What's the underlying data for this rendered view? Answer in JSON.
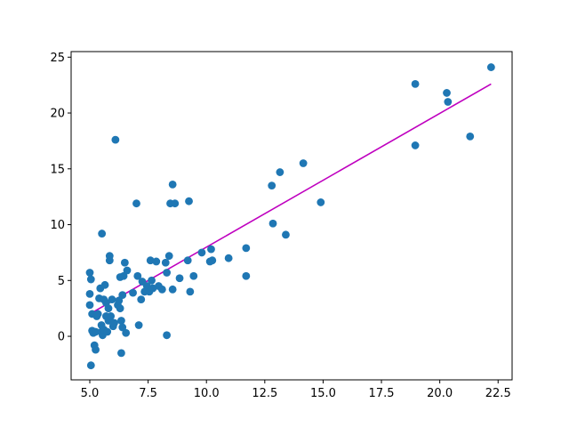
{
  "chart_data": {
    "type": "scatter",
    "title": "",
    "xlabel": "",
    "ylabel": "",
    "xlim": [
      4.2,
      23.1
    ],
    "ylim": [
      -3.9,
      25.5
    ],
    "xticks": [
      5.0,
      7.5,
      10.0,
      12.5,
      15.0,
      17.5,
      20.0,
      22.5
    ],
    "xtick_labels": [
      "5.0",
      "7.5",
      "10.0",
      "12.5",
      "15.0",
      "17.5",
      "20.0",
      "22.5"
    ],
    "yticks": [
      0,
      5,
      10,
      15,
      20,
      25
    ],
    "ytick_labels": [
      "0",
      "5",
      "10",
      "15",
      "20",
      "25"
    ],
    "grid": false,
    "legend": "none",
    "series": [
      {
        "type": "scatter",
        "color": "#1f77b4",
        "points": [
          [
            5.0,
            5.7
          ],
          [
            5.0,
            3.8
          ],
          [
            5.0,
            2.8
          ],
          [
            5.05,
            5.1
          ],
          [
            5.05,
            -2.6
          ],
          [
            5.1,
            2.0
          ],
          [
            5.1,
            0.5
          ],
          [
            5.15,
            0.3
          ],
          [
            5.2,
            -0.8
          ],
          [
            5.25,
            -1.2
          ],
          [
            5.25,
            0.4
          ],
          [
            5.3,
            1.8
          ],
          [
            5.35,
            2.0
          ],
          [
            5.4,
            3.4
          ],
          [
            5.45,
            4.3
          ],
          [
            5.5,
            0.4
          ],
          [
            5.5,
            1.0
          ],
          [
            5.52,
            9.2
          ],
          [
            5.55,
            0.1
          ],
          [
            5.6,
            0.6
          ],
          [
            5.6,
            3.3
          ],
          [
            5.65,
            4.6
          ],
          [
            5.7,
            1.8
          ],
          [
            5.7,
            3.0
          ],
          [
            5.75,
            0.4
          ],
          [
            5.8,
            1.4
          ],
          [
            5.8,
            2.5
          ],
          [
            5.85,
            6.8
          ],
          [
            5.85,
            7.2
          ],
          [
            5.9,
            1.8
          ],
          [
            5.95,
            3.3
          ],
          [
            6.0,
            0.9
          ],
          [
            6.05,
            1.2
          ],
          [
            6.1,
            17.6
          ],
          [
            6.2,
            2.8
          ],
          [
            6.25,
            3.2
          ],
          [
            6.3,
            2.5
          ],
          [
            6.3,
            5.3
          ],
          [
            6.35,
            1.4
          ],
          [
            6.35,
            -1.5
          ],
          [
            6.4,
            0.8
          ],
          [
            6.4,
            3.7
          ],
          [
            6.45,
            5.4
          ],
          [
            6.5,
            6.6
          ],
          [
            6.55,
            0.3
          ],
          [
            6.6,
            5.9
          ],
          [
            6.85,
            3.9
          ],
          [
            7.0,
            11.9
          ],
          [
            7.05,
            5.4
          ],
          [
            7.1,
            1.0
          ],
          [
            7.2,
            3.3
          ],
          [
            7.25,
            4.9
          ],
          [
            7.35,
            4.0
          ],
          [
            7.45,
            4.5
          ],
          [
            7.55,
            4.0
          ],
          [
            7.6,
            6.8
          ],
          [
            7.65,
            5.0
          ],
          [
            7.7,
            4.3
          ],
          [
            7.85,
            6.7
          ],
          [
            7.95,
            4.5
          ],
          [
            8.1,
            4.2
          ],
          [
            8.25,
            6.6
          ],
          [
            8.3,
            5.7
          ],
          [
            8.3,
            0.1
          ],
          [
            8.4,
            7.2
          ],
          [
            8.45,
            11.9
          ],
          [
            8.55,
            4.2
          ],
          [
            8.55,
            13.6
          ],
          [
            8.65,
            11.9
          ],
          [
            8.85,
            5.2
          ],
          [
            9.2,
            6.8
          ],
          [
            9.25,
            12.1
          ],
          [
            9.3,
            4.0
          ],
          [
            9.45,
            5.4
          ],
          [
            9.8,
            7.5
          ],
          [
            10.15,
            6.7
          ],
          [
            10.2,
            7.8
          ],
          [
            10.25,
            6.8
          ],
          [
            10.95,
            7.0
          ],
          [
            11.7,
            5.4
          ],
          [
            11.7,
            7.9
          ],
          [
            12.8,
            13.5
          ],
          [
            12.85,
            10.1
          ],
          [
            13.15,
            14.7
          ],
          [
            13.4,
            9.1
          ],
          [
            14.15,
            15.5
          ],
          [
            14.9,
            12.0
          ],
          [
            18.95,
            17.1
          ],
          [
            18.95,
            22.6
          ],
          [
            20.3,
            21.8
          ],
          [
            20.35,
            21.0
          ],
          [
            21.3,
            17.9
          ],
          [
            22.2,
            24.1
          ]
        ]
      },
      {
        "type": "line",
        "color": "#bf00bf",
        "x": [
          5.0,
          22.2
        ],
        "y": [
          2.0,
          22.6
        ]
      }
    ]
  }
}
